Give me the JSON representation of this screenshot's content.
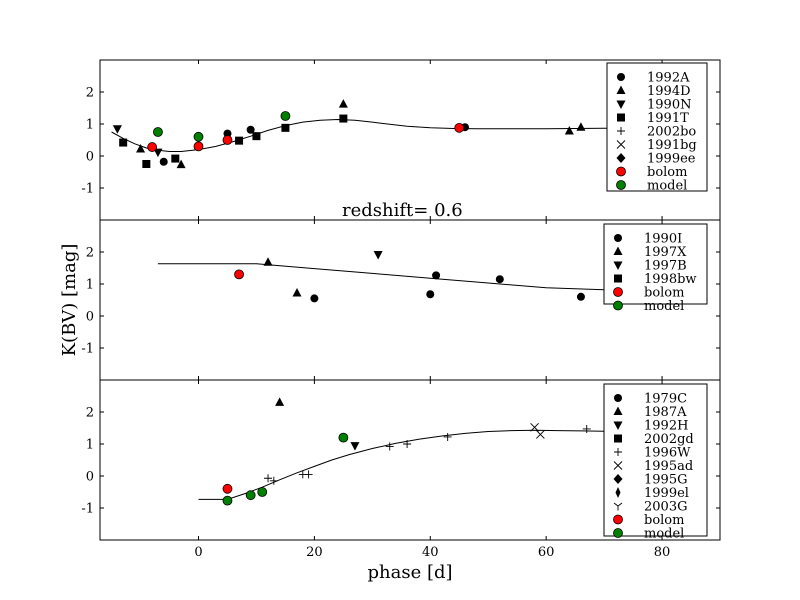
{
  "colors": {
    "bolom": "#ff0000",
    "model": "#008000",
    "ink": "#000000",
    "bg": "#ffffff"
  },
  "chart_data": {
    "type": "scatter",
    "xlabel": "phase [d]",
    "ylabel": "K(BV) [mag]",
    "xlim": [
      -17,
      90
    ],
    "xticks": [
      0,
      20,
      40,
      60,
      80
    ],
    "xtick_labels": [
      "0",
      "20",
      "40",
      "60",
      "80"
    ],
    "annotation": "redshift= 0.6",
    "panels": [
      {
        "ylim": [
          -2,
          3
        ],
        "yticks": [
          2,
          1,
          0,
          -1
        ],
        "ytick_labels": [
          "2",
          "1",
          "0",
          "-1"
        ],
        "legend": [
          {
            "label": "1992A",
            "marker": "circle"
          },
          {
            "label": "1994D",
            "marker": "triangle-up"
          },
          {
            "label": "1990N",
            "marker": "triangle-down"
          },
          {
            "label": "1991T",
            "marker": "square"
          },
          {
            "label": "2002bo",
            "marker": "plus"
          },
          {
            "label": "1991bg",
            "marker": "x"
          },
          {
            "label": "1999ee",
            "marker": "diamond"
          },
          {
            "label": "bolom",
            "marker": "circle-red"
          },
          {
            "label": "model",
            "marker": "circle-green"
          }
        ],
        "curve": [
          [
            -15,
            0.75
          ],
          [
            -13,
            0.55
          ],
          [
            -11,
            0.38
          ],
          [
            -9,
            0.25
          ],
          [
            -7,
            0.18
          ],
          [
            -5,
            0.14
          ],
          [
            -3,
            0.14
          ],
          [
            0,
            0.2
          ],
          [
            3,
            0.3
          ],
          [
            6,
            0.45
          ],
          [
            9,
            0.62
          ],
          [
            12,
            0.8
          ],
          [
            15,
            0.95
          ],
          [
            18,
            1.06
          ],
          [
            21,
            1.12
          ],
          [
            24,
            1.14
          ],
          [
            27,
            1.12
          ],
          [
            30,
            1.06
          ],
          [
            33,
            0.99
          ],
          [
            36,
            0.93
          ],
          [
            40,
            0.88
          ],
          [
            44,
            0.86
          ],
          [
            48,
            0.85
          ],
          [
            52,
            0.85
          ],
          [
            56,
            0.85
          ],
          [
            60,
            0.85
          ],
          [
            65,
            0.86
          ],
          [
            70,
            0.87
          ],
          [
            73.5,
            0.87
          ]
        ],
        "points": [
          {
            "series": "1992A",
            "marker": "circle",
            "x": -6,
            "y": -0.18
          },
          {
            "series": "1992A",
            "marker": "circle",
            "x": 5,
            "y": 0.7
          },
          {
            "series": "1992A",
            "marker": "circle",
            "x": 9,
            "y": 0.82
          },
          {
            "series": "1992A",
            "marker": "circle",
            "x": 46,
            "y": 0.9
          },
          {
            "series": "1994D",
            "marker": "triangle-up",
            "x": -10,
            "y": 0.22
          },
          {
            "series": "1994D",
            "marker": "triangle-up",
            "x": -3,
            "y": -0.27
          },
          {
            "series": "1994D",
            "marker": "triangle-up",
            "x": 25,
            "y": 1.62
          },
          {
            "series": "1994D",
            "marker": "triangle-up",
            "x": 64,
            "y": 0.78
          },
          {
            "series": "1994D",
            "marker": "triangle-up",
            "x": 66,
            "y": 0.9
          },
          {
            "series": "1990N",
            "marker": "triangle-down",
            "x": -14,
            "y": 0.85
          },
          {
            "series": "1990N",
            "marker": "triangle-down",
            "x": -7,
            "y": 0.12
          },
          {
            "series": "1991T",
            "marker": "square",
            "x": -13,
            "y": 0.42
          },
          {
            "series": "1991T",
            "marker": "square",
            "x": -9,
            "y": -0.25
          },
          {
            "series": "1991T",
            "marker": "square",
            "x": -4,
            "y": -0.08
          },
          {
            "series": "1991T",
            "marker": "square",
            "x": 7,
            "y": 0.48
          },
          {
            "series": "1991T",
            "marker": "square",
            "x": 10,
            "y": 0.62
          },
          {
            "series": "1991T",
            "marker": "square",
            "x": 15,
            "y": 0.88
          },
          {
            "series": "1991T",
            "marker": "square",
            "x": 25,
            "y": 1.17
          },
          {
            "series": "bolom",
            "marker": "circle-red",
            "x": -8,
            "y": 0.28
          },
          {
            "series": "bolom",
            "marker": "circle-red",
            "x": 0,
            "y": 0.3
          },
          {
            "series": "bolom",
            "marker": "circle-red",
            "x": 5,
            "y": 0.5
          },
          {
            "series": "bolom",
            "marker": "circle-red",
            "x": 45,
            "y": 0.88
          },
          {
            "series": "model",
            "marker": "circle-green",
            "x": -7,
            "y": 0.75
          },
          {
            "series": "model",
            "marker": "circle-green",
            "x": 0,
            "y": 0.6
          },
          {
            "series": "model",
            "marker": "circle-green",
            "x": 15,
            "y": 1.25
          }
        ]
      },
      {
        "ylim": [
          -2,
          3
        ],
        "yticks": [
          2,
          1,
          0,
          -1
        ],
        "ytick_labels": [
          "2",
          "1",
          "0",
          "-1"
        ],
        "legend": [
          {
            "label": "1990I",
            "marker": "circle"
          },
          {
            "label": "1997X",
            "marker": "triangle-up"
          },
          {
            "label": "1997B",
            "marker": "triangle-down"
          },
          {
            "label": "1998bw",
            "marker": "square"
          },
          {
            "label": "bolom",
            "marker": "circle-red"
          },
          {
            "label": "model",
            "marker": "circle-green"
          }
        ],
        "curve": [
          [
            -7,
            1.63
          ],
          [
            10,
            1.63
          ],
          [
            20,
            1.48
          ],
          [
            30,
            1.33
          ],
          [
            40,
            1.18
          ],
          [
            50,
            1.03
          ],
          [
            60,
            0.88
          ],
          [
            70,
            0.82
          ],
          [
            73.5,
            0.82
          ]
        ],
        "points": [
          {
            "series": "1990I",
            "marker": "circle",
            "x": 20,
            "y": 0.55
          },
          {
            "series": "1990I",
            "marker": "circle",
            "x": 40,
            "y": 0.68
          },
          {
            "series": "1990I",
            "marker": "circle",
            "x": 41,
            "y": 1.27
          },
          {
            "series": "1990I",
            "marker": "circle",
            "x": 52,
            "y": 1.15
          },
          {
            "series": "1990I",
            "marker": "circle",
            "x": 66,
            "y": 0.6
          },
          {
            "series": "1997X",
            "marker": "triangle-up",
            "x": 12,
            "y": 1.68
          },
          {
            "series": "1997X",
            "marker": "triangle-up",
            "x": 17,
            "y": 0.72
          },
          {
            "series": "1997B",
            "marker": "triangle-down",
            "x": 31,
            "y": 1.92
          },
          {
            "series": "bolom",
            "marker": "circle-red",
            "x": 7,
            "y": 1.3
          }
        ]
      },
      {
        "ylim": [
          -2,
          3
        ],
        "yticks": [
          2,
          1,
          0,
          -1
        ],
        "ytick_labels": [
          "2",
          "1",
          "0",
          "-1"
        ],
        "legend": [
          {
            "label": "1979C",
            "marker": "circle"
          },
          {
            "label": "1987A",
            "marker": "triangle-up"
          },
          {
            "label": "1992H",
            "marker": "triangle-down"
          },
          {
            "label": "2002gd",
            "marker": "square"
          },
          {
            "label": "1996W",
            "marker": "plus"
          },
          {
            "label": "1995ad",
            "marker": "x"
          },
          {
            "label": "1995G",
            "marker": "diamond"
          },
          {
            "label": "1999el",
            "marker": "thin-diamond"
          },
          {
            "label": "2003G",
            "marker": "tri-down"
          },
          {
            "label": "bolom",
            "marker": "circle-red"
          },
          {
            "label": "model",
            "marker": "circle-green"
          }
        ],
        "curve": [
          [
            0,
            -0.73
          ],
          [
            5,
            -0.73
          ],
          [
            8,
            -0.55
          ],
          [
            11,
            -0.35
          ],
          [
            14,
            -0.12
          ],
          [
            17,
            0.1
          ],
          [
            20,
            0.3
          ],
          [
            23,
            0.5
          ],
          [
            26,
            0.67
          ],
          [
            30,
            0.86
          ],
          [
            34,
            1.02
          ],
          [
            38,
            1.15
          ],
          [
            42,
            1.25
          ],
          [
            46,
            1.33
          ],
          [
            50,
            1.39
          ],
          [
            54,
            1.42
          ],
          [
            58,
            1.43
          ],
          [
            62,
            1.42
          ],
          [
            66,
            1.41
          ],
          [
            70,
            1.4
          ],
          [
            73.5,
            1.4
          ]
        ],
        "points": [
          {
            "series": "1987A",
            "marker": "triangle-up",
            "x": 14,
            "y": 2.3
          },
          {
            "series": "1992H",
            "marker": "triangle-down",
            "x": 27,
            "y": 0.95
          },
          {
            "series": "1996W",
            "marker": "plus",
            "x": 12,
            "y": -0.07
          },
          {
            "series": "1996W",
            "marker": "plus",
            "x": 13,
            "y": -0.15
          },
          {
            "series": "1996W",
            "marker": "plus",
            "x": 18,
            "y": 0.05
          },
          {
            "series": "1996W",
            "marker": "plus",
            "x": 19,
            "y": 0.05
          },
          {
            "series": "1996W",
            "marker": "plus",
            "x": 33,
            "y": 0.92
          },
          {
            "series": "1996W",
            "marker": "plus",
            "x": 36,
            "y": 1.0
          },
          {
            "series": "1996W",
            "marker": "plus",
            "x": 43,
            "y": 1.22
          },
          {
            "series": "1996W",
            "marker": "plus",
            "x": 67,
            "y": 1.47
          },
          {
            "series": "1995ad",
            "marker": "x",
            "x": 58,
            "y": 1.52
          },
          {
            "series": "1995ad",
            "marker": "x",
            "x": 59,
            "y": 1.3
          },
          {
            "series": "bolom",
            "marker": "circle-red",
            "x": 5,
            "y": -0.4
          },
          {
            "series": "model",
            "marker": "circle-green",
            "x": 5,
            "y": -0.77
          },
          {
            "series": "model",
            "marker": "circle-green",
            "x": 9,
            "y": -0.6
          },
          {
            "series": "model",
            "marker": "circle-green",
            "x": 11,
            "y": -0.5
          },
          {
            "series": "model",
            "marker": "circle-green",
            "x": 25,
            "y": 1.2
          }
        ]
      }
    ]
  }
}
